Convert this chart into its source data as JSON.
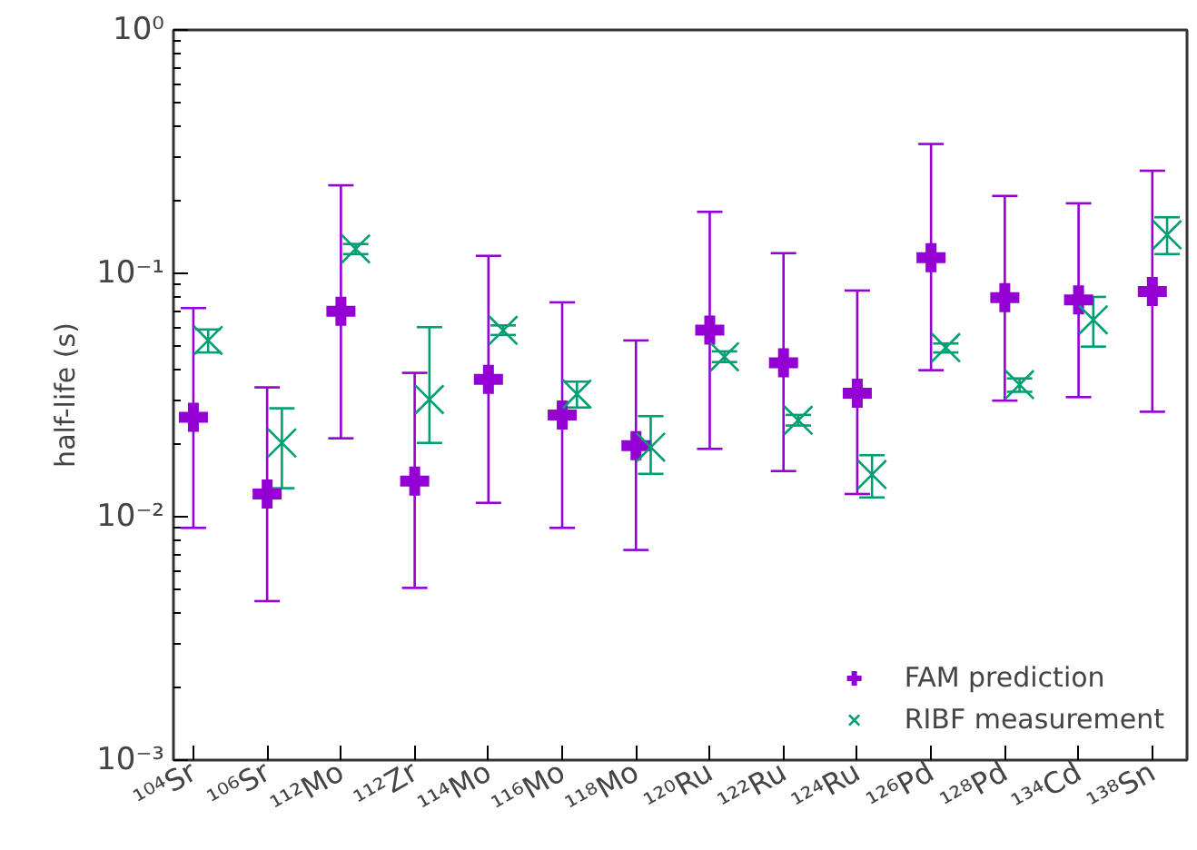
{
  "chart_data": {
    "type": "scatter",
    "ylabel": "half-life (s)",
    "log": "y",
    "legend": "bottom right",
    "grid": false,
    "categories": [
      "¹⁰⁴Sr",
      "¹⁰⁶Sr",
      "¹¹²Mo",
      "¹¹²Zr",
      "¹¹⁴Mo",
      "¹¹⁶Mo",
      "¹¹⁸Mo",
      "¹²⁰Ru",
      "¹²²Ru",
      "¹²⁴Ru",
      "¹²⁶Pd",
      "¹²⁸Pd",
      "¹³⁴Cd",
      "¹³⁸Sn"
    ],
    "ylim": [
      0.001,
      1
    ],
    "yticks": [
      {
        "value": 0.001,
        "label": "10⁻³"
      },
      {
        "value": 0.01,
        "label": "10⁻²"
      },
      {
        "value": 0.1,
        "label": "10⁻¹"
      },
      {
        "value": 1,
        "label": "10⁰"
      }
    ],
    "series": [
      {
        "name": "FAM prediction",
        "color": "#9400d3",
        "marker": "cross",
        "values": [
          0.0256,
          0.0124,
          0.0698,
          0.014,
          0.0367,
          0.0262,
          0.0196,
          0.0584,
          0.0429,
          0.0322,
          0.116,
          0.0795,
          0.0778,
          0.0842
        ],
        "errors": [
          [
            0.009,
            0.072
          ],
          [
            0.0045,
            0.034
          ],
          [
            0.021,
            0.23
          ],
          [
            0.0051,
            0.039
          ],
          [
            0.0114,
            0.118
          ],
          [
            0.009,
            0.076
          ],
          [
            0.0073,
            0.053
          ],
          [
            0.019,
            0.179
          ],
          [
            0.0154,
            0.121
          ],
          [
            0.0124,
            0.085
          ],
          [
            0.04,
            0.34
          ],
          [
            0.03,
            0.208
          ],
          [
            0.031,
            0.194
          ],
          [
            0.027,
            0.264
          ]
        ]
      },
      {
        "name": "RIBF measurement",
        "color": "#009e73",
        "marker": "x",
        "values": [
          0.053,
          0.0201,
          0.126,
          0.0303,
          0.0583,
          0.0319,
          0.0193,
          0.0454,
          0.0249,
          0.0149,
          0.0495,
          0.0349,
          0.0644,
          0.144
        ],
        "errors": [
          [
            0.0473,
            0.0588
          ],
          [
            0.0131,
            0.0279
          ],
          [
            0.12,
            0.132
          ],
          [
            0.0201,
            0.0601
          ],
          [
            0.0558,
            0.0611
          ],
          [
            0.0281,
            0.0359
          ],
          [
            0.015,
            0.0259
          ],
          [
            0.0432,
            0.0478
          ],
          [
            0.0237,
            0.0262
          ],
          [
            0.012,
            0.0179
          ],
          [
            0.0473,
            0.0515
          ],
          [
            0.0326,
            0.037
          ],
          [
            0.05,
            0.08
          ],
          [
            0.12,
            0.17
          ]
        ]
      }
    ]
  }
}
